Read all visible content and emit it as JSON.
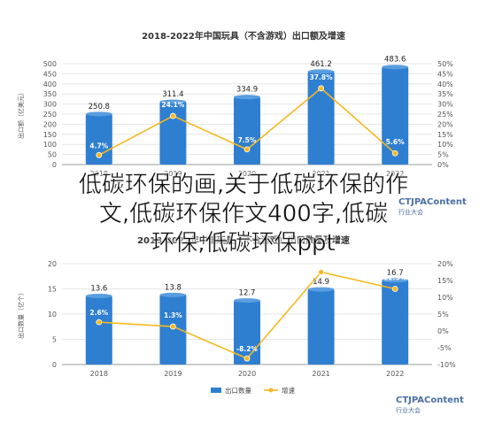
{
  "overlay_text": {
    "line1": "低碳环保的画,关于低碳环保的作",
    "line2": "文,低碳环保作文400字,低碳",
    "line3": "环保,低碳环保ppt"
  },
  "watermark": {
    "brand": "CTJPAContent",
    "sub": "行业大会"
  },
  "colors": {
    "bar": "#2f7fd1",
    "line": "#f5b820",
    "point": "#f5b820"
  },
  "chart_data": [
    {
      "type": "bar",
      "title": "2018-2022年中国玩具（不含游戏）出口额及增速",
      "categories": [
        "2018",
        "2019",
        "2020",
        "2021",
        "2022"
      ],
      "y_left_label": "出口额（亿美元）",
      "series": [
        {
          "name": "出口额",
          "type": "bar",
          "values": [
            250.8,
            311.4,
            334.9,
            461.2,
            483.6
          ]
        },
        {
          "name": "增速",
          "type": "line",
          "values": [
            4.7,
            24.1,
            7.5,
            37.8,
            5.6
          ]
        }
      ],
      "value_labels": [
        "250.8",
        "311.4",
        "334.9",
        "461.2",
        "483.6"
      ],
      "pct_labels": [
        "4.7%",
        "24.1%",
        "7.5%",
        "37.8%",
        "5.6%"
      ],
      "y_left_ticks": [
        "0",
        "50",
        "100",
        "150",
        "200",
        "250",
        "300",
        "350",
        "400",
        "450",
        "500"
      ],
      "y_right_ticks": [
        "0%",
        "5%",
        "10%",
        "15%",
        "20%",
        "25%",
        "30%",
        "35%",
        "40%",
        "45%",
        "50%"
      ],
      "ylim_left": [
        0,
        500
      ],
      "ylim_right": [
        0,
        50
      ]
    },
    {
      "type": "bar",
      "title": "2018-2022年中国玩具（不含游戏）出口数量及增速",
      "categories": [
        "2018",
        "2019",
        "2020",
        "2021",
        "2022"
      ],
      "y_left_label": "出口数量（亿个）",
      "series": [
        {
          "name": "出口数量",
          "type": "bar",
          "values": [
            13.6,
            13.8,
            12.7,
            14.9,
            16.7
          ]
        },
        {
          "name": "增速",
          "type": "line",
          "values": [
            2.6,
            1.3,
            -8.2,
            17.5,
            12.5
          ]
        }
      ],
      "value_labels": [
        "13.6",
        "13.8",
        "12.7",
        "14.9",
        "16.7"
      ],
      "pct_labels": [
        "2.6%",
        "1.3%",
        "-8.2%",
        "17.5%",
        "12.5%"
      ],
      "y_left_ticks": [
        "0",
        "5",
        "10",
        "15",
        "20"
      ],
      "y_right_ticks": [
        "-10%",
        "-5%",
        "0%",
        "5%",
        "10%",
        "15%",
        "20%"
      ],
      "ylim_left": [
        0,
        20
      ],
      "ylim_right": [
        -10,
        20
      ],
      "legend": [
        "出口数量",
        "增速"
      ]
    }
  ]
}
